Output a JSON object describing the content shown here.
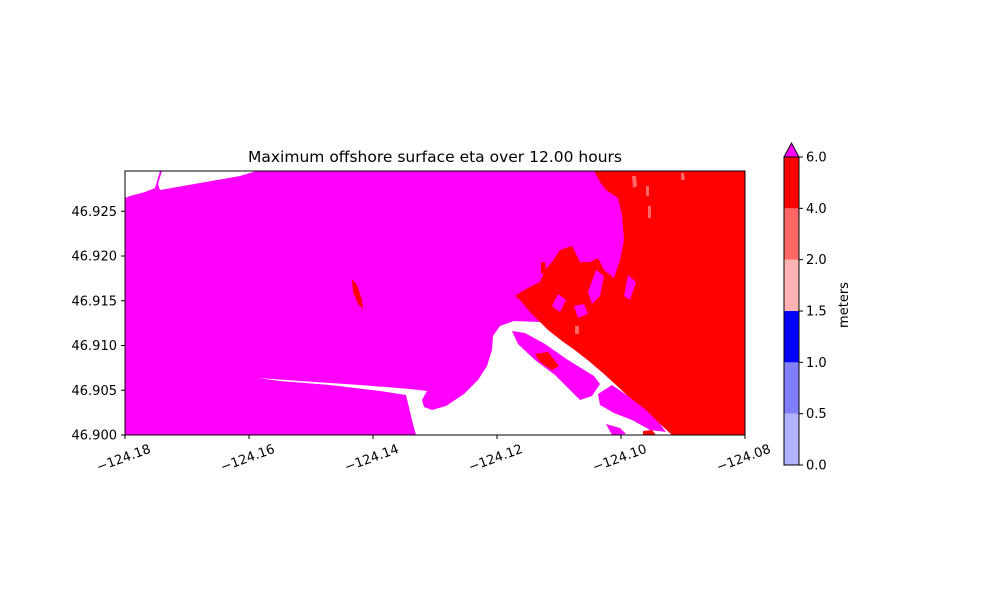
{
  "chart_data": {
    "type": "heatmap",
    "title": "Maximum offshore surface eta over 12.00 hours",
    "xlabel": "",
    "ylabel": "",
    "xlim": [
      -124.18,
      -124.08
    ],
    "ylim": [
      46.9,
      46.9295
    ],
    "x_ticks": [
      -124.18,
      -124.16,
      -124.14,
      -124.12,
      -124.1,
      -124.08
    ],
    "x_tick_labels": [
      "−124.18",
      "−124.16",
      "−124.14",
      "−124.12",
      "−124.10",
      "−124.08"
    ],
    "y_ticks": [
      46.9,
      46.905,
      46.91,
      46.915,
      46.92,
      46.925
    ],
    "y_tick_labels": [
      "46.900",
      "46.905",
      "46.910",
      "46.915",
      "46.920",
      "46.925"
    ],
    "colorbar": {
      "label": "meters",
      "extend": "max",
      "over_color": "#ff00ff",
      "levels": [
        0.0,
        0.5,
        1.0,
        1.5,
        2.0,
        4.0,
        6.0
      ],
      "level_labels": [
        "0.0",
        "0.5",
        "1.0",
        "1.5",
        "2.0",
        "4.0",
        "6.0"
      ],
      "colors": [
        "#b2b2ff",
        "#8080ff",
        "#0000ff",
        "#ffb2b2",
        "#ff6666",
        "#ff0000"
      ]
    },
    "regions": {
      "offshore_color": "#ff00ff",
      "nearshore_color": "#ff0000",
      "dry_land_color": "#ffffff"
    }
  }
}
